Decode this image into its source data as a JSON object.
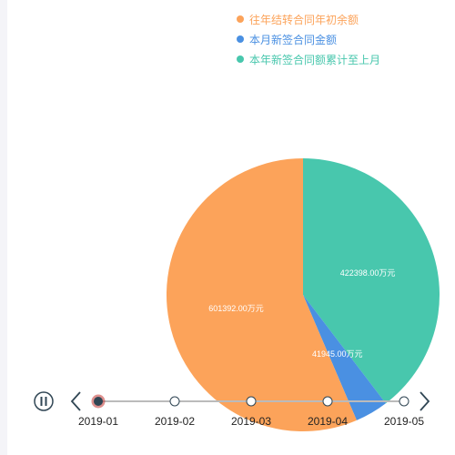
{
  "chart_data": {
    "type": "pie",
    "title": "",
    "slices": [
      {
        "name": "往年结转合同年初余额",
        "value": 601392.0,
        "label": "601392.00万元",
        "color": "#fca35a"
      },
      {
        "name": "本月新签合同金额",
        "value": 41945.0,
        "label": "41945.00万元",
        "color": "#4a90e2"
      },
      {
        "name": "本年新签合同额累计至上月",
        "value": 422398.0,
        "label": "422398.00万元",
        "color": "#48c7ad"
      }
    ],
    "legend_position": "top-right"
  },
  "legend": {
    "items": [
      {
        "label": "往年结转合同年初余额",
        "color": "#fca35a"
      },
      {
        "label": "本月新签合同金额",
        "color": "#4a90e2"
      },
      {
        "label": "本年新签合同额累计至上月",
        "color": "#48c7ad"
      }
    ]
  },
  "timeline": {
    "periods": [
      "2019-01",
      "2019-02",
      "2019-03",
      "2019-04",
      "2019-05"
    ],
    "current_index": 0,
    "play_state": "playing",
    "play_icon": "pause-icon",
    "prev_icon": "chevron-left-icon",
    "next_icon": "chevron-right-icon",
    "active_color": "#c23531"
  }
}
